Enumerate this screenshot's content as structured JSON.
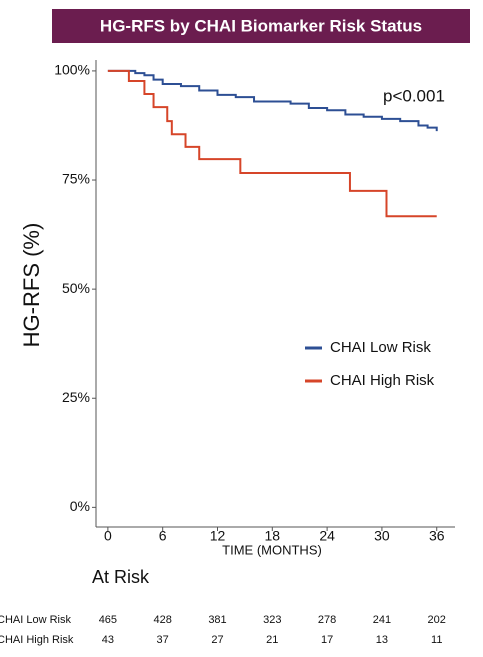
{
  "chart_data": {
    "type": "step",
    "title": "HG-RFS by CHAI Biomarker Risk Status",
    "x_label": "TIME (MONTHS)",
    "y_label": "HG-RFS (%)",
    "annotation": "p<0.001",
    "xlim": [
      -1.3,
      38
    ],
    "ylim": [
      -4.5,
      102.5
    ],
    "xticks": [
      0,
      6,
      12,
      18,
      24,
      30,
      36
    ],
    "yticks": [
      {
        "value": 0,
        "label": "0%"
      },
      {
        "value": 25,
        "label": "25%"
      },
      {
        "value": 50,
        "label": "50%"
      },
      {
        "value": 75,
        "label": "75%"
      },
      {
        "value": 100,
        "label": "100%"
      }
    ],
    "legend": "right",
    "series": [
      {
        "name": "CHAI Low Risk",
        "color": "#2d4f94",
        "x": [
          0,
          2,
          3,
          4,
          5,
          6,
          8,
          10,
          12,
          14,
          16,
          18,
          20,
          22,
          24,
          26,
          28,
          30,
          32,
          34,
          35,
          36
        ],
        "values": [
          100,
          100,
          99.5,
          99,
          98,
          97,
          96.5,
          95.5,
          94.5,
          94,
          93,
          93,
          92.5,
          91.5,
          91,
          90,
          89.5,
          89,
          88.5,
          87.5,
          87,
          86.2
        ]
      },
      {
        "name": "CHAI High Risk",
        "color": "#d64529",
        "x": [
          0,
          2.3,
          4,
          5,
          6.5,
          7,
          8.5,
          10,
          14.5,
          26.5,
          30.5,
          36
        ],
        "values": [
          100,
          97.7,
          94.7,
          91.7,
          88.5,
          85.5,
          82.6,
          79.8,
          76.6,
          72.5,
          66.7,
          66.7
        ]
      }
    ]
  },
  "risk_table": {
    "title": "At Risk",
    "rows": [
      {
        "label": "CHAI Low Risk",
        "counts": [
          465,
          428,
          381,
          323,
          278,
          241,
          202
        ]
      },
      {
        "label": "CHAI High Risk",
        "counts": [
          43,
          37,
          27,
          21,
          17,
          13,
          11
        ]
      }
    ]
  }
}
